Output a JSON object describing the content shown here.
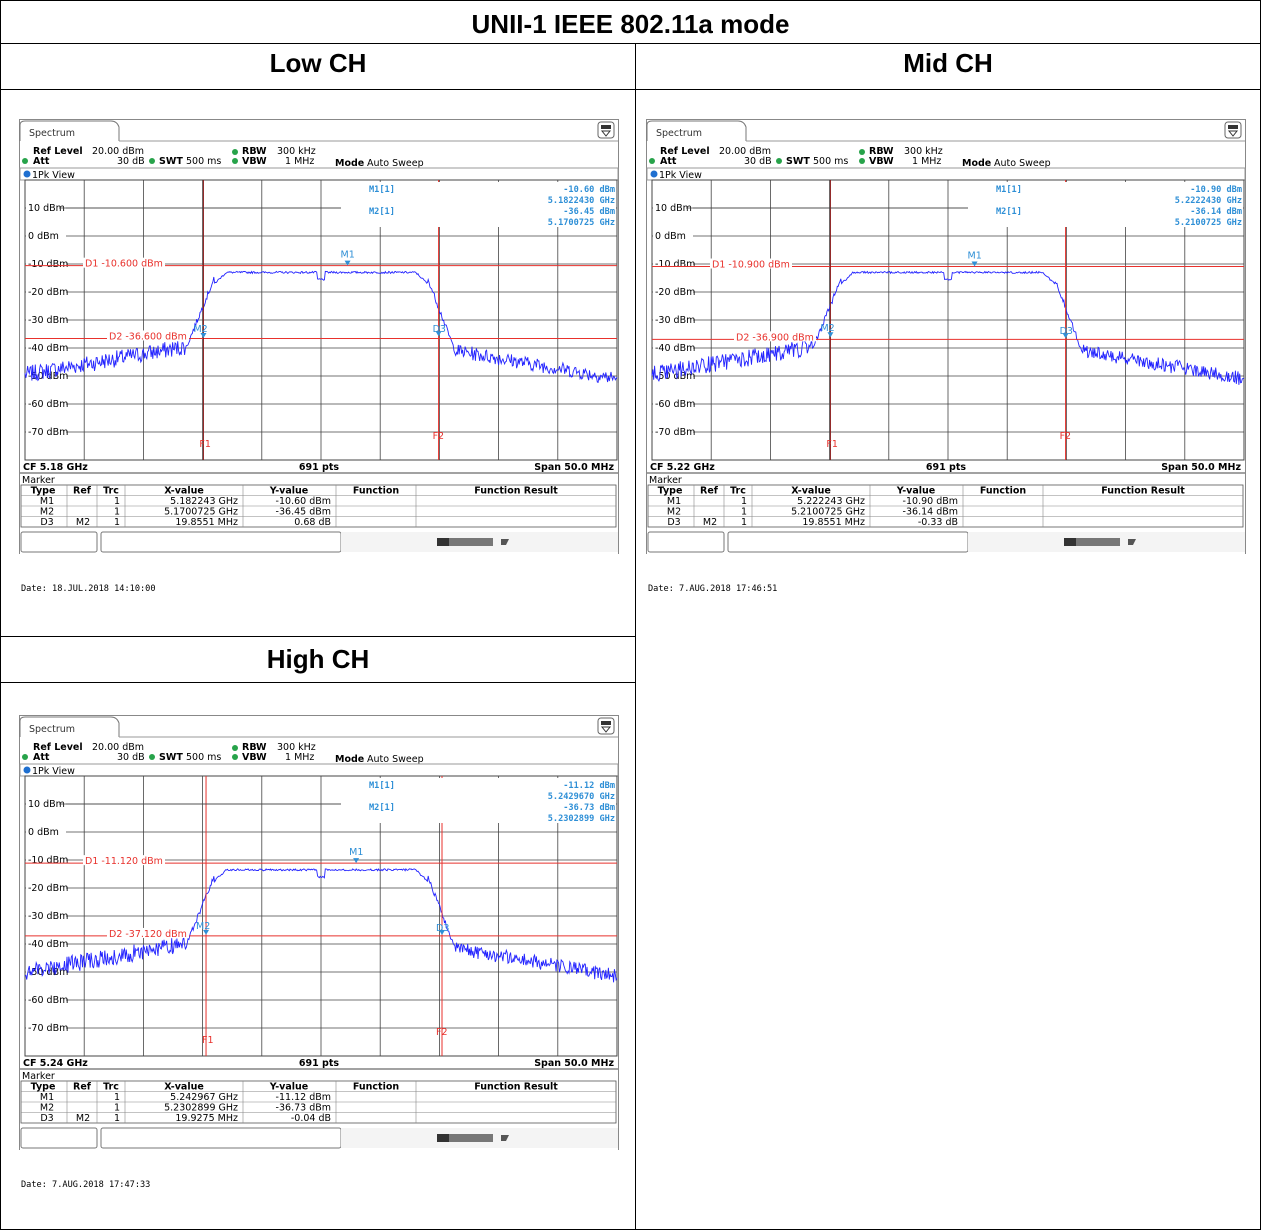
{
  "title": "UNII-1 IEEE 802.11a mode",
  "colors": {
    "trace": "#2323ff",
    "limit": "#e8312c",
    "freqline": "#8b1a1a",
    "marker": "#2e8fd6"
  },
  "common": {
    "spectrum_tab": "Spectrum",
    "ref_level_label": "Ref Level",
    "ref_level_value": "20.00 dBm",
    "att_label": "Att",
    "att_value": "30 dB",
    "swt_label": "SWT",
    "swt_value": "500 ms",
    "rbw_label": "RBW",
    "rbw_value": "300 kHz",
    "vbw_label": "VBW",
    "vbw_value": "1 MHz",
    "mode_label": "Mode",
    "mode_value": "Auto Sweep",
    "view_label": "1Pk View",
    "y_ticks": [
      "10 dBm",
      "0 dBm",
      "-10 dBm",
      "-20 dBm",
      "-30 dBm",
      "-40 dBm",
      "-50 dBm",
      "-60 dBm",
      "-70 dBm"
    ],
    "pts": "691 pts",
    "span": "Span 50.0 MHz",
    "marker_title": "Marker",
    "table_headers": [
      "Type",
      "Ref",
      "Trc",
      "X-value",
      "Y-value",
      "Function",
      "Function Result"
    ],
    "m1_tag": "M1[1]",
    "m2_tag": "M2[1]",
    "f1_label": "F1",
    "f2_label": "F2",
    "m1_label": "M1",
    "m2_label": "M2",
    "d3_label": "D3"
  },
  "panels": [
    {
      "heading": "Low CH",
      "cf": "CF 5.18 GHz",
      "m1_level": "-10.60 dBm",
      "m1_freq": "5.1822430 GHz",
      "m2_level": "-36.45 dBm",
      "m2_freq": "5.1700725 GHz",
      "d1_label": "D1 -10.600 dBm",
      "d2_label": "D2 -36.600 dBm",
      "date": "Date: 18.JUL.2018  14:10:00",
      "rows": [
        [
          "M1",
          "",
          "1",
          "5.182243 GHz",
          "-10.60 dBm",
          "",
          ""
        ],
        [
          "M2",
          "",
          "1",
          "5.1700725 GHz",
          "-36.45 dBm",
          "",
          ""
        ],
        [
          "D3",
          "M2",
          "1",
          "19.8551 MHz",
          "0.68 dB",
          "",
          ""
        ]
      ],
      "chart_data": {
        "type": "line",
        "xlabel": "",
        "ylabel": "",
        "x_range_mhz": [
          5155,
          5205
        ],
        "ylim": [
          -80,
          20
        ],
        "d1_dbm": -10.6,
        "d2_dbm": -36.6,
        "f1_mhz": 5170.07,
        "f2_mhz": 5189.93,
        "m1": {
          "x_mhz": 5182.243,
          "y_dbm": -10.6
        },
        "m2": {
          "x_mhz": 5170.0725,
          "y_dbm": -36.45
        },
        "d3": {
          "x_mhz": 5189.93,
          "y_dbm": -35.8
        },
        "trace": {
          "floor_dbm": -51,
          "plateau_dbm": -12,
          "edge_lo_mhz": 5171,
          "edge_hi_mhz": 5189
        }
      }
    },
    {
      "heading": "Mid CH",
      "cf": "CF 5.22 GHz",
      "m1_level": "-10.90 dBm",
      "m1_freq": "5.2222430 GHz",
      "m2_level": "-36.14 dBm",
      "m2_freq": "5.2100725 GHz",
      "d1_label": "D1 -10.900 dBm",
      "d2_label": "D2 -36.900 dBm",
      "date": "Date: 7.AUG.2018  17:46:51",
      "rows": [
        [
          "M1",
          "",
          "1",
          "5.222243 GHz",
          "-10.90 dBm",
          "",
          ""
        ],
        [
          "M2",
          "",
          "1",
          "5.2100725 GHz",
          "-36.14 dBm",
          "",
          ""
        ],
        [
          "D3",
          "M2",
          "1",
          "19.8551 MHz",
          "-0.33 dB",
          "",
          ""
        ]
      ],
      "chart_data": {
        "type": "line",
        "xlabel": "",
        "ylabel": "",
        "x_range_mhz": [
          5195,
          5245
        ],
        "ylim": [
          -80,
          20
        ],
        "d1_dbm": -10.9,
        "d2_dbm": -36.9,
        "f1_mhz": 5210.07,
        "f2_mhz": 5229.93,
        "m1": {
          "x_mhz": 5222.243,
          "y_dbm": -10.9
        },
        "m2": {
          "x_mhz": 5210.0725,
          "y_dbm": -36.14
        },
        "d3": {
          "x_mhz": 5229.93,
          "y_dbm": -36.5
        },
        "trace": {
          "floor_dbm": -51,
          "plateau_dbm": -12,
          "edge_lo_mhz": 5211,
          "edge_hi_mhz": 5229
        }
      }
    },
    {
      "heading": "High CH",
      "cf": "CF 5.24 GHz",
      "m1_level": "-11.12 dBm",
      "m1_freq": "5.2429670 GHz",
      "m2_level": "-36.73 dBm",
      "m2_freq": "5.2302899 GHz",
      "d1_label": "D1 -11.120 dBm",
      "d2_label": "D2 -37.120 dBm",
      "date": "Date: 7.AUG.2018  17:47:33",
      "rows": [
        [
          "M1",
          "",
          "1",
          "5.242967 GHz",
          "-11.12 dBm",
          "",
          ""
        ],
        [
          "M2",
          "",
          "1",
          "5.2302899 GHz",
          "-36.73 dBm",
          "",
          ""
        ],
        [
          "D3",
          "M2",
          "1",
          "19.9275 MHz",
          "-0.04 dB",
          "",
          ""
        ]
      ],
      "chart_data": {
        "type": "line",
        "xlabel": "",
        "ylabel": "",
        "x_range_mhz": [
          5215,
          5265
        ],
        "ylim": [
          -80,
          20
        ],
        "d1_dbm": -11.12,
        "d2_dbm": -37.12,
        "f1_mhz": 5230.29,
        "f2_mhz": 5250.22,
        "m1": {
          "x_mhz": 5242.967,
          "y_dbm": -11.12
        },
        "m2": {
          "x_mhz": 5230.2899,
          "y_dbm": -36.73
        },
        "d3": {
          "x_mhz": 5250.22,
          "y_dbm": -36.8
        },
        "trace": {
          "floor_dbm": -51.5,
          "plateau_dbm": -12.5,
          "edge_lo_mhz": 5231,
          "edge_hi_mhz": 5249
        }
      }
    }
  ]
}
